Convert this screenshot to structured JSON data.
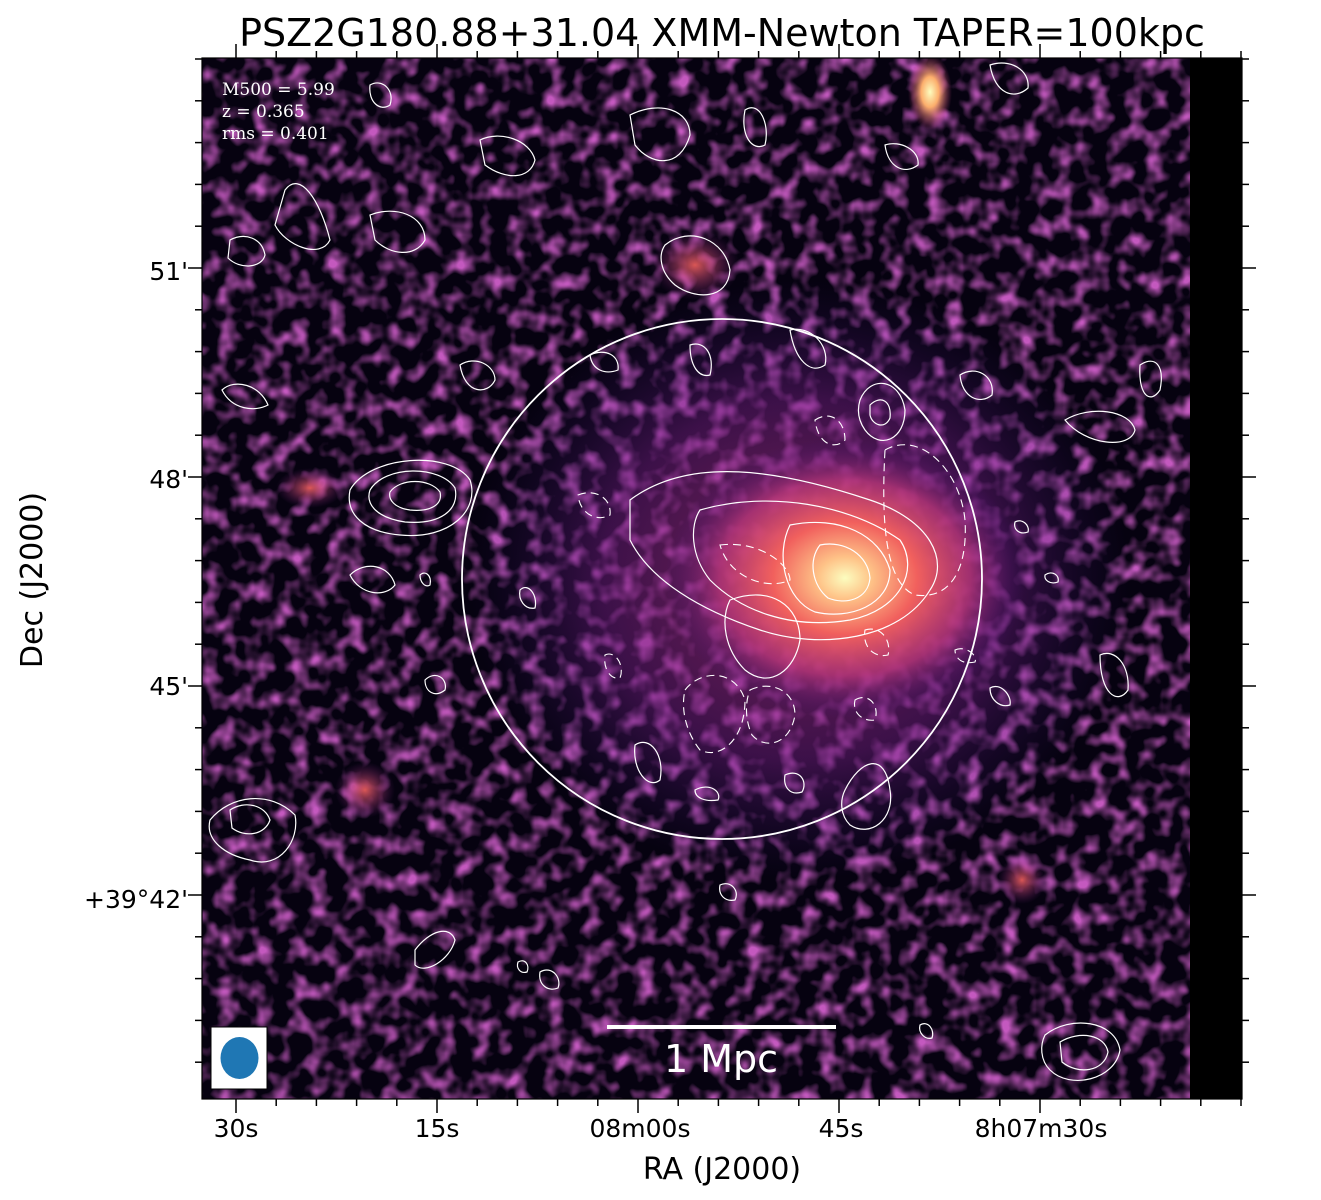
{
  "chart_data": {
    "type": "heatmap",
    "title": "PSZ2G180.88+31.04 XMM-Newton TAPER=100kpc",
    "xlabel": "RA (J2000)",
    "ylabel": "Dec (J2000)",
    "x_ticks": [
      "30s",
      "15s",
      "08m00s",
      "45s",
      "8h07m30s"
    ],
    "y_ticks": [
      "51'",
      "48'",
      "45'",
      "+39°42'"
    ],
    "annotations": {
      "m500": "M500 = 5.99",
      "z": "z = 0.365",
      "rms": "rms = 0.401"
    },
    "scale_bar": {
      "label": "1 Mpc"
    },
    "colormap": "inferno",
    "colors": {
      "background": "#000000",
      "low": "#3b0f70",
      "mid": "#b63679",
      "high": "#fb8861",
      "peak": "#fcfdbf",
      "contour": "#ffffff",
      "beam": "#1f77b4"
    },
    "features": [
      "x-ray emission map",
      "radio contours (solid positive, dashed negative)",
      "R500 circle",
      "beam ellipse"
    ]
  }
}
